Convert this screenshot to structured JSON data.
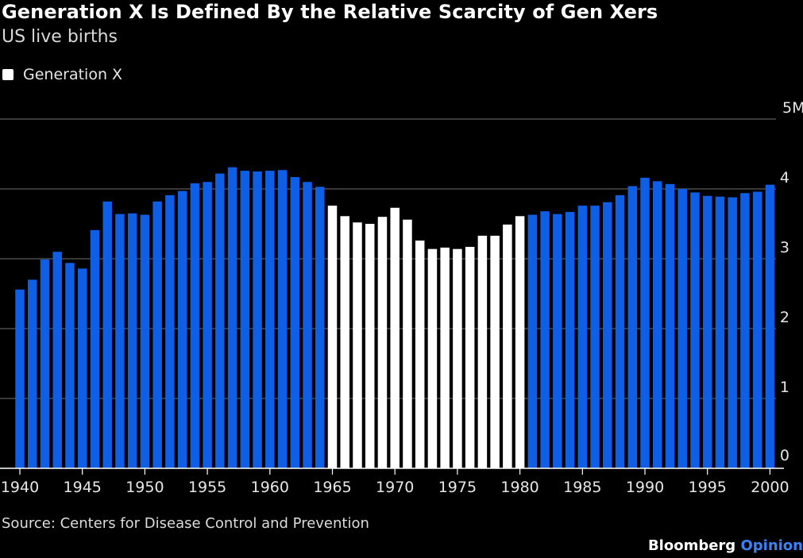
{
  "chart_data": {
    "type": "bar",
    "title": "Generation X Is Defined By the Relative Scarcity of Gen Xers",
    "subtitle": "US live births",
    "legend": [
      {
        "name": "Generation X",
        "color": "#ffffff"
      }
    ],
    "highlight": {
      "name": "Generation X",
      "from": 1965,
      "to": 1980,
      "color": "#ffffff"
    },
    "bar_color": "#0e5ee6",
    "x": [
      1940,
      1941,
      1942,
      1943,
      1944,
      1945,
      1946,
      1947,
      1948,
      1949,
      1950,
      1951,
      1952,
      1953,
      1954,
      1955,
      1956,
      1957,
      1958,
      1959,
      1960,
      1961,
      1962,
      1963,
      1964,
      1965,
      1966,
      1967,
      1968,
      1969,
      1970,
      1971,
      1972,
      1973,
      1974,
      1975,
      1976,
      1977,
      1978,
      1979,
      1980,
      1981,
      1982,
      1983,
      1984,
      1985,
      1986,
      1987,
      1988,
      1989,
      1990,
      1991,
      1992,
      1993,
      1994,
      1995,
      1996,
      1997,
      1998,
      1999,
      2000
    ],
    "values": [
      2.56,
      2.7,
      2.99,
      3.1,
      2.94,
      2.86,
      3.41,
      3.82,
      3.64,
      3.65,
      3.63,
      3.82,
      3.91,
      3.97,
      4.08,
      4.1,
      4.22,
      4.31,
      4.26,
      4.25,
      4.26,
      4.27,
      4.17,
      4.1,
      4.03,
      3.76,
      3.61,
      3.52,
      3.5,
      3.6,
      3.73,
      3.56,
      3.26,
      3.14,
      3.16,
      3.14,
      3.17,
      3.33,
      3.33,
      3.49,
      3.61,
      3.63,
      3.68,
      3.64,
      3.67,
      3.76,
      3.76,
      3.81,
      3.91,
      4.04,
      4.16,
      4.11,
      4.07,
      4.0,
      3.95,
      3.9,
      3.89,
      3.88,
      3.94,
      3.96,
      4.06
    ],
    "x_ticks": [
      1940,
      1945,
      1950,
      1955,
      1960,
      1965,
      1970,
      1975,
      1980,
      1985,
      1990,
      1995,
      2000
    ],
    "y_ticks": [
      0,
      1,
      2,
      3,
      4,
      5
    ],
    "y_tick_labels": [
      "0",
      "1",
      "2",
      "3",
      "4",
      "5M"
    ],
    "ylim": [
      0,
      5
    ],
    "xlabel": "",
    "ylabel": "",
    "grid": true,
    "grid_color": "#5a5a5a"
  },
  "footer": {
    "source": "Source: Centers for Disease Control and Prevention",
    "brand_main": "Bloomberg",
    "brand_sub": "Opinion"
  }
}
